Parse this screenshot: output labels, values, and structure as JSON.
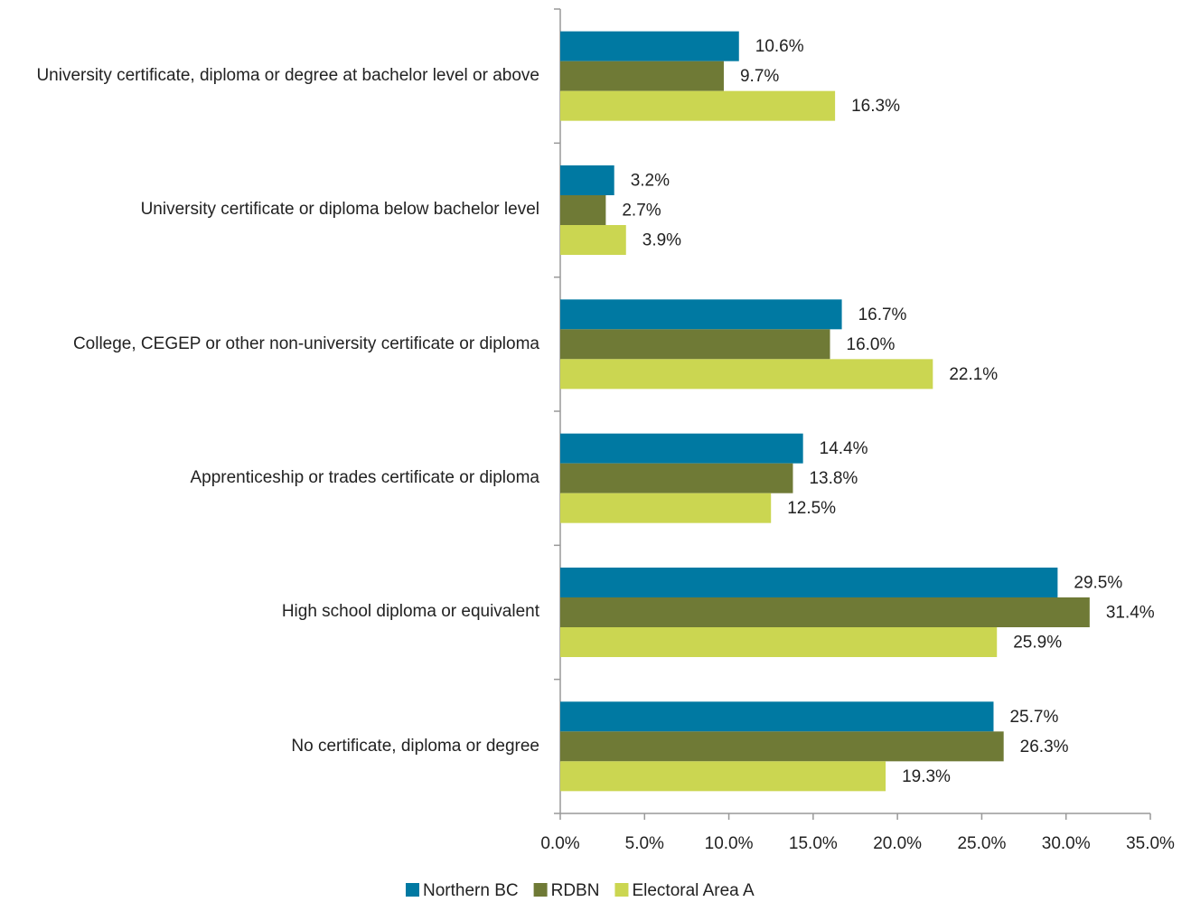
{
  "chart_data": {
    "type": "hbar",
    "categories": [
      "University certificate, diploma or degree at bachelor level or above",
      "University certificate or diploma below bachelor level",
      "College, CEGEP or other non-university certificate or diploma",
      "Apprenticeship or trades certificate or diploma",
      "High school diploma or equivalent",
      "No certificate, diploma or degree"
    ],
    "series": [
      {
        "name": "Northern BC",
        "color": "#0079a2",
        "values": [
          10.6,
          3.2,
          16.7,
          14.4,
          29.5,
          25.7
        ],
        "value_labels": [
          "10.6%",
          "3.2%",
          "16.7%",
          "14.4%",
          "29.5%",
          "25.7%"
        ]
      },
      {
        "name": "RDBN",
        "color": "#6f7a36",
        "values": [
          9.7,
          2.7,
          16.0,
          13.8,
          31.4,
          26.3
        ],
        "value_labels": [
          "9.7%",
          "2.7%",
          "16.0%",
          "13.8%",
          "31.4%",
          "26.3%"
        ]
      },
      {
        "name": "Electoral Area A",
        "color": "#cbd651",
        "values": [
          16.3,
          3.9,
          22.1,
          12.5,
          25.9,
          19.3
        ],
        "value_labels": [
          "16.3%",
          "3.9%",
          "22.1%",
          "12.5%",
          "25.9%",
          "19.3%"
        ]
      }
    ],
    "xlim": [
      0,
      35
    ],
    "xticks": [
      {
        "value": 0,
        "label": "0.0%"
      },
      {
        "value": 5,
        "label": "5.0%"
      },
      {
        "value": 10,
        "label": "10.0%"
      },
      {
        "value": 15,
        "label": "15.0%"
      },
      {
        "value": 20,
        "label": "20.0%"
      },
      {
        "value": 25,
        "label": "25.0%"
      },
      {
        "value": 30,
        "label": "30.0%"
      },
      {
        "value": 35,
        "label": "35.0%"
      }
    ],
    "grid": false,
    "legend": "bottom"
  }
}
